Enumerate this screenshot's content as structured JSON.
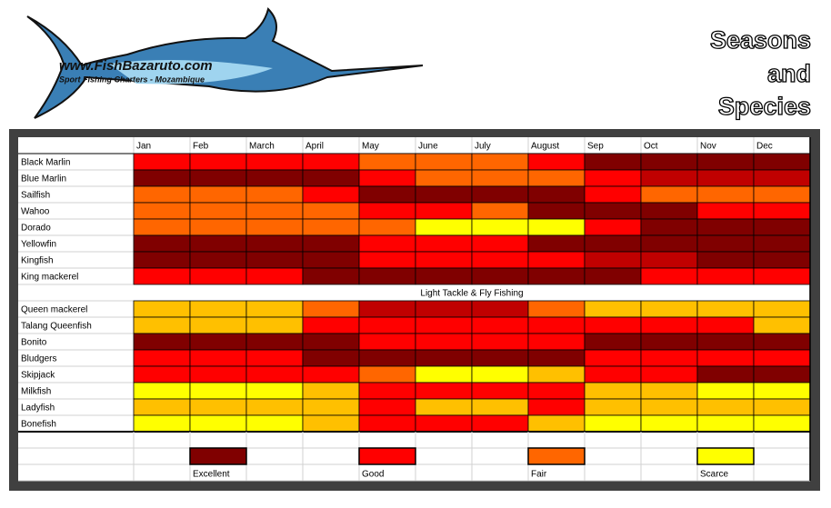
{
  "header": {
    "site": "www.FishBazaruto.com",
    "tagline": "Sport Fishing Charters - Mozambique",
    "title_lines": [
      "Seasons",
      "and",
      "Species"
    ]
  },
  "table": {
    "months": [
      "Jan",
      "Feb",
      "March",
      "April",
      "May",
      "June",
      "July",
      "August",
      "Sep",
      "Oct",
      "Nov",
      "Dec"
    ],
    "groups": [
      {
        "rows": [
          {
            "species": "Black Marlin",
            "colors": [
              "#ff0000",
              "#ff0000",
              "#ff0000",
              "#ff0000",
              "#ff6600",
              "#ff6600",
              "#ff6600",
              "#ff0000",
              "#800000",
              "#800000",
              "#800000",
              "#800000"
            ]
          },
          {
            "species": "Blue Marlin",
            "colors": [
              "#800000",
              "#800000",
              "#800000",
              "#800000",
              "#ff0000",
              "#ff6600",
              "#ff6600",
              "#ff6600",
              "#ff0000",
              "#c00000",
              "#c00000",
              "#c00000"
            ]
          },
          {
            "species": "Sailfish",
            "colors": [
              "#ff6600",
              "#ff6600",
              "#ff6600",
              "#ff0000",
              "#800000",
              "#800000",
              "#800000",
              "#800000",
              "#ff0000",
              "#ff6600",
              "#ff6600",
              "#ff6600"
            ]
          },
          {
            "species": "Wahoo",
            "colors": [
              "#ff6600",
              "#ff6600",
              "#ff6600",
              "#ff6600",
              "#ff0000",
              "#ff0000",
              "#ff6600",
              "#800000",
              "#800000",
              "#800000",
              "#ff0000",
              "#ff0000"
            ]
          },
          {
            "species": "Dorado",
            "colors": [
              "#ff6600",
              "#ff6600",
              "#ff6600",
              "#ff6600",
              "#ff6600",
              "#ffff00",
              "#ffff00",
              "#ffff00",
              "#ff0000",
              "#800000",
              "#800000",
              "#800000"
            ]
          },
          {
            "species": "Yellowfin",
            "colors": [
              "#800000",
              "#800000",
              "#800000",
              "#800000",
              "#ff0000",
              "#ff0000",
              "#ff0000",
              "#800000",
              "#800000",
              "#800000",
              "#800000",
              "#800000"
            ]
          },
          {
            "species": "Kingfish",
            "colors": [
              "#800000",
              "#800000",
              "#800000",
              "#800000",
              "#ff0000",
              "#ff0000",
              "#ff0000",
              "#ff0000",
              "#c00000",
              "#c00000",
              "#800000",
              "#800000"
            ]
          },
          {
            "species": "King mackerel",
            "colors": [
              "#ff0000",
              "#ff0000",
              "#ff0000",
              "#800000",
              "#800000",
              "#800000",
              "#800000",
              "#800000",
              "#800000",
              "#ff0000",
              "#ff0000",
              "#ff0000"
            ]
          }
        ]
      },
      {
        "heading": "Light Tackle & Fly Fishing",
        "rows": [
          {
            "species": "Queen mackerel",
            "colors": [
              "#ffc000",
              "#ffc000",
              "#ffc000",
              "#ff6600",
              "#c00000",
              "#c00000",
              "#c00000",
              "#ff6600",
              "#ffc000",
              "#ffc000",
              "#ffc000",
              "#ffc000"
            ]
          },
          {
            "species": "Talang Queenfish",
            "colors": [
              "#ffc000",
              "#ffc000",
              "#ffc000",
              "#ff0000",
              "#ff0000",
              "#ff0000",
              "#ff0000",
              "#ff0000",
              "#ff0000",
              "#ff0000",
              "#ff0000",
              "#ffc000"
            ]
          },
          {
            "species": "Bonito",
            "colors": [
              "#800000",
              "#800000",
              "#800000",
              "#800000",
              "#ff0000",
              "#ff0000",
              "#ff0000",
              "#ff0000",
              "#800000",
              "#800000",
              "#800000",
              "#800000"
            ]
          },
          {
            "species": "Bludgers",
            "colors": [
              "#ff0000",
              "#ff0000",
              "#ff0000",
              "#800000",
              "#800000",
              "#800000",
              "#800000",
              "#800000",
              "#ff0000",
              "#ff0000",
              "#ff0000",
              "#ff0000"
            ]
          },
          {
            "species": "Skipjack",
            "colors": [
              "#ff0000",
              "#ff0000",
              "#ff0000",
              "#ff0000",
              "#ff6600",
              "#ffff00",
              "#ffff00",
              "#ffc000",
              "#ff0000",
              "#ff0000",
              "#800000",
              "#800000"
            ]
          },
          {
            "species": "Milkfish",
            "colors": [
              "#ffff00",
              "#ffff00",
              "#ffff00",
              "#ffc000",
              "#ff0000",
              "#ff0000",
              "#ff0000",
              "#ff0000",
              "#ffc000",
              "#ffc000",
              "#ffff00",
              "#ffff00"
            ]
          },
          {
            "species": "Ladyfish",
            "colors": [
              "#ffc000",
              "#ffc000",
              "#ffc000",
              "#ffc000",
              "#ff0000",
              "#ffc000",
              "#ffc000",
              "#ff0000",
              "#ffc000",
              "#ffc000",
              "#ffc000",
              "#ffc000"
            ]
          },
          {
            "species": "Bonefish",
            "colors": [
              "#ffff00",
              "#ffff00",
              "#ffff00",
              "#ffc000",
              "#ff0000",
              "#ff0000",
              "#ff0000",
              "#ffc000",
              "#ffff00",
              "#ffff00",
              "#ffff00",
              "#ffff00"
            ]
          }
        ]
      }
    ],
    "legend": [
      {
        "label": "Excellent",
        "color": "#800000"
      },
      {
        "label": "Good",
        "color": "#ff0000"
      },
      {
        "label": "Fair",
        "color": "#ff6600"
      },
      {
        "label": "Scarce",
        "color": "#ffff00"
      }
    ]
  }
}
